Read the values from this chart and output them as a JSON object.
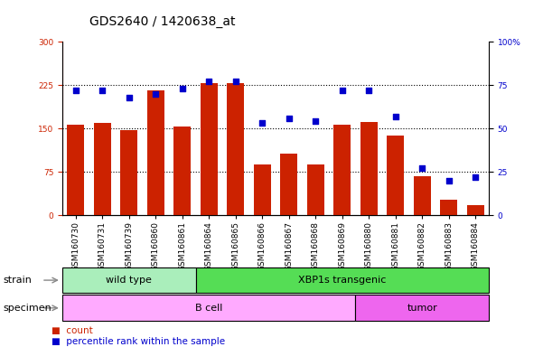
{
  "title": "GDS2640 / 1420638_at",
  "samples": [
    "GSM160730",
    "GSM160731",
    "GSM160739",
    "GSM160860",
    "GSM160861",
    "GSM160864",
    "GSM160865",
    "GSM160866",
    "GSM160867",
    "GSM160868",
    "GSM160869",
    "GSM160880",
    "GSM160881",
    "GSM160882",
    "GSM160883",
    "GSM160884"
  ],
  "counts": [
    157,
    160,
    147,
    215,
    154,
    228,
    228,
    87,
    107,
    88,
    157,
    161,
    138,
    67,
    27,
    17
  ],
  "percentiles": [
    72,
    72,
    68,
    70,
    73,
    77,
    77,
    53,
    56,
    54,
    72,
    72,
    57,
    27,
    20,
    22
  ],
  "bar_color": "#cc2200",
  "dot_color": "#0000cc",
  "left_ylim": [
    0,
    300
  ],
  "right_ylim": [
    0,
    100
  ],
  "left_yticks": [
    0,
    75,
    150,
    225,
    300
  ],
  "right_yticks": [
    0,
    25,
    50,
    75,
    100
  ],
  "right_yticklabels": [
    "0",
    "25",
    "50",
    "75",
    "100%"
  ],
  "hline_values": [
    75,
    150,
    225
  ],
  "strain_groups": [
    {
      "label": "wild type",
      "start": 0,
      "end": 5,
      "color": "#aaeebb"
    },
    {
      "label": "XBP1s transgenic",
      "start": 5,
      "end": 16,
      "color": "#55dd55"
    }
  ],
  "specimen_groups": [
    {
      "label": "B cell",
      "start": 0,
      "end": 11,
      "color": "#ffaaff"
    },
    {
      "label": "tumor",
      "start": 11,
      "end": 16,
      "color": "#ee66ee"
    }
  ],
  "background_color": "#ffffff",
  "title_fontsize": 10,
  "tick_fontsize": 6.5,
  "label_fontsize": 8,
  "group_label_fontsize": 8,
  "legend_fontsize": 7.5
}
